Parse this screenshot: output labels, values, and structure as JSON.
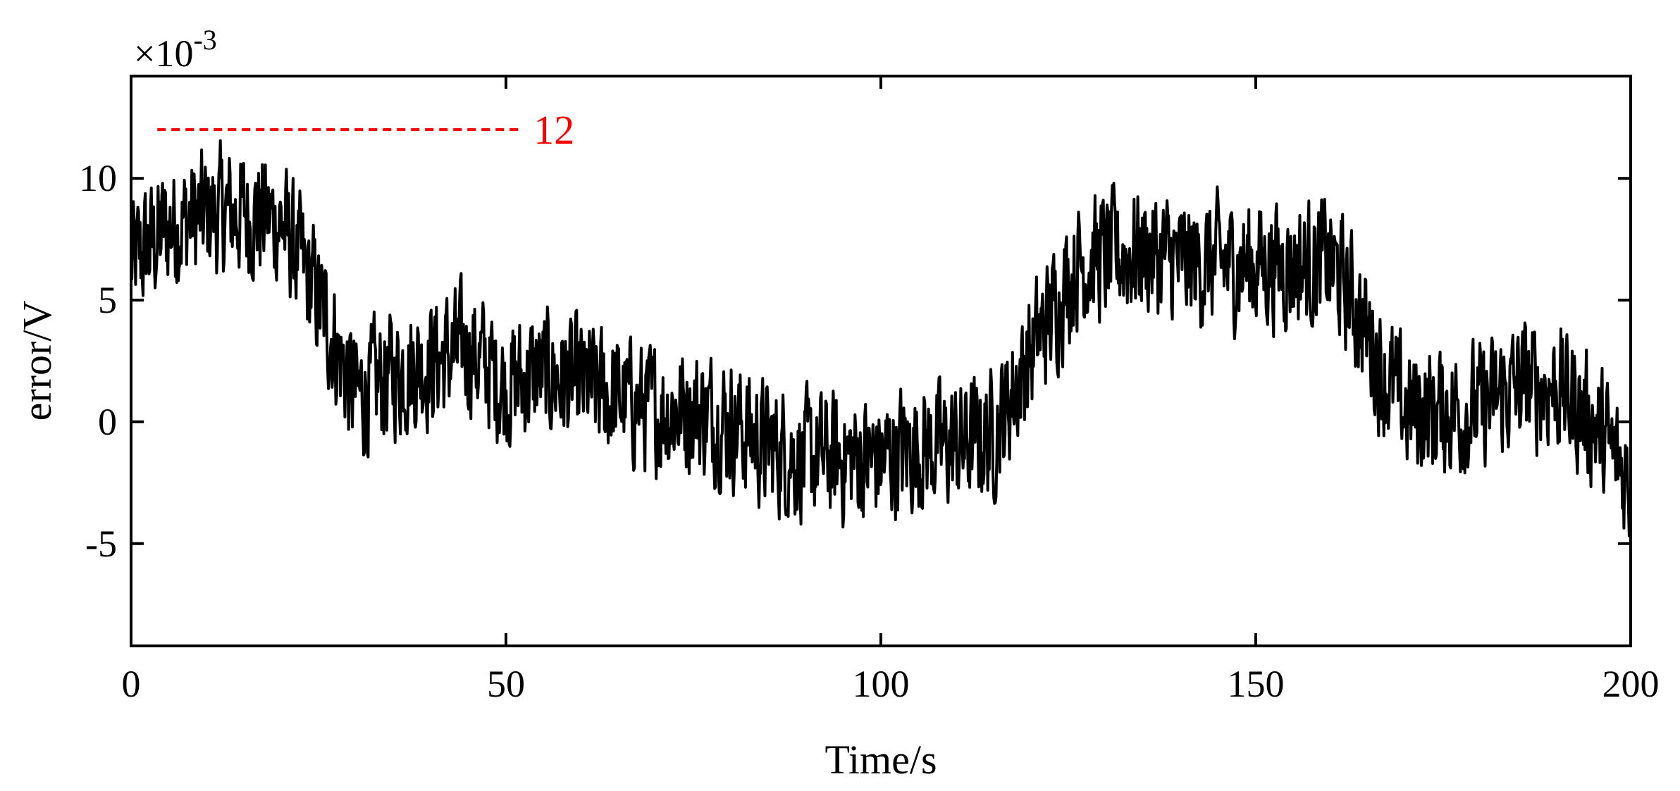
{
  "chart_data": {
    "type": "line",
    "xlabel": "Time/s",
    "ylabel": "error/V",
    "y_multiplier_label": "×10",
    "y_multiplier_exponent": "-3",
    "xlim": [
      0,
      200
    ],
    "ylim": [
      -9.2,
      14.2
    ],
    "x_ticks": [
      0,
      50,
      100,
      150,
      200
    ],
    "x_tick_labels": [
      "0",
      "50",
      "100",
      "150",
      "200"
    ],
    "y_ticks": [
      -5,
      0,
      5,
      10
    ],
    "y_tick_labels": [
      "-5",
      "0",
      "5",
      "10"
    ],
    "grid": false,
    "legend": "none",
    "line_color": "#000000",
    "annotation": {
      "label": "12",
      "y": 12,
      "x_range": [
        3.5,
        52
      ],
      "color": "#ff0000",
      "style": "dashed"
    },
    "series": [
      {
        "trend_x": [
          0,
          5,
          10,
          15,
          20,
          25,
          30,
          35,
          40,
          45,
          50,
          55,
          60,
          65,
          70,
          75,
          80,
          85,
          90,
          95,
          100,
          105,
          110,
          115,
          118,
          122,
          126,
          130,
          135,
          140,
          145,
          150,
          155,
          160,
          163,
          167,
          170,
          175,
          180,
          185,
          190,
          195,
          200
        ],
        "trend_y": [
          6.5,
          8.0,
          8.5,
          8.6,
          8.2,
          5.0,
          1.0,
          2.0,
          2.5,
          3.0,
          1.5,
          2.0,
          1.5,
          1.0,
          0.5,
          0.5,
          0.0,
          -1.0,
          -1.5,
          -1.5,
          -1.5,
          -1.0,
          -1.0,
          -0.5,
          1.5,
          4.0,
          6.5,
          6.8,
          7.0,
          6.5,
          6.5,
          6.5,
          6.5,
          6.5,
          5.0,
          2.0,
          0.5,
          0.5,
          0.5,
          1.5,
          1.5,
          0.0,
          -2.5
        ],
        "noise_amplitude": 3.6,
        "num_points": 2000,
        "y_min": -7.0,
        "y_max": 11.8
      }
    ]
  }
}
